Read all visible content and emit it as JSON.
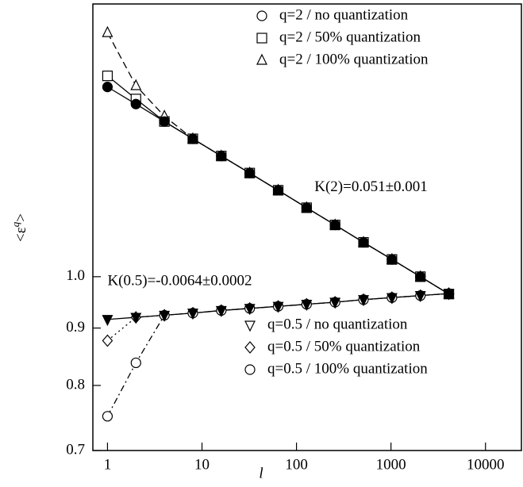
{
  "chart_data": {
    "type": "scatter",
    "xlabel": "l",
    "ylabel": [
      "<ε",
      "q",
      ">"
    ],
    "x": [
      1,
      2,
      4,
      8,
      16,
      32,
      64,
      128,
      256,
      512,
      1024,
      2048,
      4096
    ],
    "xlim": [
      0.7,
      24000
    ],
    "xticks": [
      1,
      10,
      100,
      1000,
      10000
    ],
    "xscale": "log",
    "ylim": [
      0.7,
      1.75
    ],
    "yticks": [
      0.7,
      0.8,
      0.9,
      {
        "value": 1.0,
        "label": "1.0"
      }
    ],
    "yscale": "log",
    "series": [
      {
        "name": "q=2 / no quantization",
        "color": "#000000",
        "marker": "circle",
        "filled": true,
        "line": "solid",
        "legend": "upper right",
        "values": [
          1.476,
          1.425,
          1.375,
          1.327,
          1.281,
          1.237,
          1.194,
          1.152,
          1.112,
          1.073,
          1.036,
          1.0,
          0.965
        ]
      },
      {
        "name": "q=2 / 50% quantization",
        "color": "#000000",
        "marker": "square",
        "filled": false,
        "line": "solid",
        "legend": "upper right",
        "values": [
          1.51,
          1.44,
          1.375,
          1.327,
          1.281,
          1.237,
          1.194,
          1.152,
          1.112,
          1.073,
          1.036,
          1.0,
          0.965
        ]
      },
      {
        "name": "q=2 / 100% quantization",
        "color": "#000000",
        "marker": "triangle-up",
        "filled": false,
        "line": "dashed",
        "legend": "upper right",
        "values": [
          1.65,
          1.48,
          1.39,
          1.327,
          1.281,
          1.237,
          1.194,
          1.152,
          1.112,
          1.073,
          1.036,
          1.0,
          0.965
        ]
      },
      {
        "name": "q=0.5 / no quantization",
        "color": "#000000",
        "marker": "triangle-down",
        "filled": true,
        "line": "solid",
        "legend": "lower right",
        "values": [
          0.916,
          0.92,
          0.924,
          0.928,
          0.933,
          0.937,
          0.941,
          0.945,
          0.949,
          0.954,
          0.958,
          0.962,
          0.966
        ]
      },
      {
        "name": "q=0.5 / 50% quantization",
        "color": "#000000",
        "marker": "diamond",
        "filled": false,
        "line": "dotted",
        "legend": "lower right",
        "values": [
          0.877,
          0.92,
          0.924,
          0.928,
          0.933,
          0.937,
          0.941,
          0.945,
          0.949,
          0.954,
          0.958,
          0.962,
          0.966
        ]
      },
      {
        "name": "q=0.5 / 100% quantization",
        "color": "#000000",
        "marker": "circle",
        "filled": false,
        "line": "dashdot",
        "legend": "lower right",
        "values": [
          0.751,
          0.838,
          0.924,
          0.928,
          0.933,
          0.937,
          0.941,
          0.945,
          0.949,
          0.954,
          0.958,
          0.962,
          0.966
        ]
      }
    ],
    "annotations": [
      {
        "text": "K(2)=0.051±0.001",
        "x": 600,
        "y": 1.2
      },
      {
        "text": "K(0.5)=-0.0064±0.0002",
        "x": 1,
        "y": 0.99
      }
    ]
  }
}
